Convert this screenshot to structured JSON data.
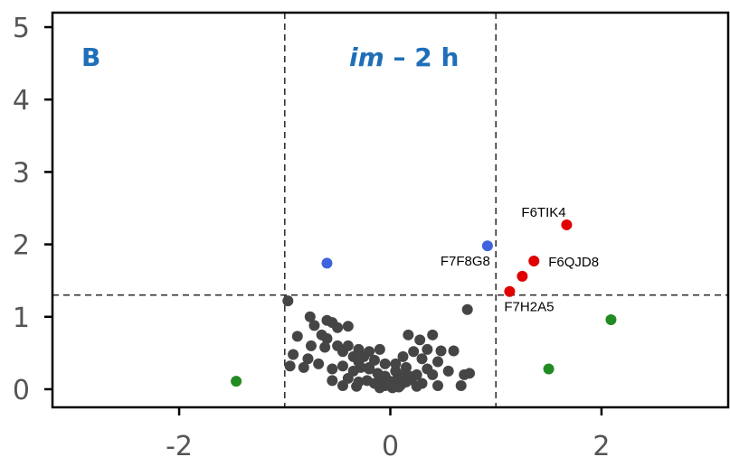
{
  "chart_data": {
    "type": "scatter",
    "panel_label": "B",
    "title_italic": "im",
    "title_rest": " – 2 h",
    "xlim": [
      -3.2,
      3.2
    ],
    "ylim": [
      -0.25,
      5.2
    ],
    "x_ticks": [
      {
        "value": -2,
        "label": "-2"
      },
      {
        "value": 0,
        "label": "0"
      },
      {
        "value": 2,
        "label": "2"
      }
    ],
    "y_ticks": [
      {
        "value": 0,
        "label": "0"
      },
      {
        "value": 1,
        "label": "1"
      },
      {
        "value": 2,
        "label": "2"
      },
      {
        "value": 3,
        "label": "3"
      },
      {
        "value": 4,
        "label": "4"
      },
      {
        "value": 5,
        "label": "5"
      }
    ],
    "thresholds": {
      "x": [
        -1,
        1
      ],
      "y": [
        1.3
      ]
    },
    "colors": {
      "ns": "#454545",
      "up": "#e00000",
      "down_sig": "#3e63dd",
      "fc_only": "#228b22",
      "threshold_line": "#333333",
      "title": "#1f6fb8"
    },
    "series": [
      {
        "group": "ns",
        "points": [
          [
            -0.97,
            1.22
          ],
          [
            0.73,
            1.1
          ],
          [
            -0.76,
            1.0
          ],
          [
            -0.6,
            0.95
          ],
          [
            -0.72,
            0.88
          ],
          [
            -0.55,
            0.92
          ],
          [
            -0.5,
            0.85
          ],
          [
            -0.4,
            0.87
          ],
          [
            -0.88,
            0.73
          ],
          [
            -0.65,
            0.75
          ],
          [
            -0.6,
            0.7
          ],
          [
            0.4,
            0.75
          ],
          [
            0.17,
            0.75
          ],
          [
            0.28,
            0.68
          ],
          [
            -0.75,
            0.6
          ],
          [
            -0.62,
            0.58
          ],
          [
            -0.5,
            0.6
          ],
          [
            -0.45,
            0.52
          ],
          [
            -0.4,
            0.6
          ],
          [
            -0.3,
            0.55
          ],
          [
            -0.2,
            0.52
          ],
          [
            -0.1,
            0.55
          ],
          [
            0.22,
            0.52
          ],
          [
            0.35,
            0.55
          ],
          [
            0.48,
            0.53
          ],
          [
            0.6,
            0.53
          ],
          [
            -0.92,
            0.48
          ],
          [
            -0.78,
            0.42
          ],
          [
            -0.35,
            0.45
          ],
          [
            -0.25,
            0.45
          ],
          [
            -0.15,
            0.4
          ],
          [
            -0.05,
            0.35
          ],
          [
            0.12,
            0.45
          ],
          [
            0.3,
            0.42
          ],
          [
            0.45,
            0.38
          ],
          [
            -0.95,
            0.32
          ],
          [
            -0.82,
            0.3
          ],
          [
            -0.68,
            0.35
          ],
          [
            -0.55,
            0.28
          ],
          [
            -0.45,
            0.32
          ],
          [
            -0.35,
            0.25
          ],
          [
            -0.28,
            0.3
          ],
          [
            -0.2,
            0.28
          ],
          [
            -0.12,
            0.22
          ],
          [
            -0.05,
            0.18
          ],
          [
            0.05,
            0.25
          ],
          [
            0.15,
            0.3
          ],
          [
            0.25,
            0.2
          ],
          [
            0.35,
            0.28
          ],
          [
            0.4,
            0.2
          ],
          [
            0.55,
            0.25
          ],
          [
            0.7,
            0.2
          ],
          [
            0.75,
            0.22
          ],
          [
            -0.55,
            0.12
          ],
          [
            -0.4,
            0.15
          ],
          [
            -0.3,
            0.1
          ],
          [
            -0.22,
            0.12
          ],
          [
            -0.15,
            0.08
          ],
          [
            -0.1,
            0.15
          ],
          [
            -0.05,
            0.05
          ],
          [
            0.0,
            0.08
          ],
          [
            0.05,
            0.12
          ],
          [
            0.1,
            0.06
          ],
          [
            0.15,
            0.1
          ],
          [
            0.2,
            0.13
          ],
          [
            0.3,
            0.08
          ],
          [
            0.45,
            0.05
          ],
          [
            0.67,
            0.05
          ],
          [
            -0.45,
            0.05
          ],
          [
            -0.32,
            0.04
          ],
          [
            -0.1,
            0.02
          ],
          [
            0.02,
            0.02
          ],
          [
            0.08,
            0.03
          ],
          [
            0.25,
            0.04
          ],
          [
            -0.2,
            0.3
          ],
          [
            -0.3,
            0.38
          ],
          [
            0.05,
            0.35
          ],
          [
            0.18,
            0.18
          ],
          [
            -0.02,
            0.12
          ],
          [
            0.12,
            0.2
          ]
        ]
      },
      {
        "group": "up",
        "points": [
          {
            "x": 1.67,
            "y": 2.27,
            "label": "F6TIK4"
          },
          {
            "x": 1.36,
            "y": 1.77,
            "label": "F6QJD8"
          },
          {
            "x": 1.25,
            "y": 1.56
          },
          {
            "x": 1.13,
            "y": 1.35,
            "label": "F7H2A5"
          }
        ]
      },
      {
        "group": "down_sig",
        "points": [
          {
            "x": 0.92,
            "y": 1.98,
            "label": "F7F8G8"
          },
          {
            "x": -0.6,
            "y": 1.74
          }
        ]
      },
      {
        "group": "fc_only",
        "points": [
          {
            "x": 2.09,
            "y": 0.96
          },
          {
            "x": 1.5,
            "y": 0.28
          },
          {
            "x": -1.46,
            "y": 0.11
          }
        ]
      }
    ]
  }
}
